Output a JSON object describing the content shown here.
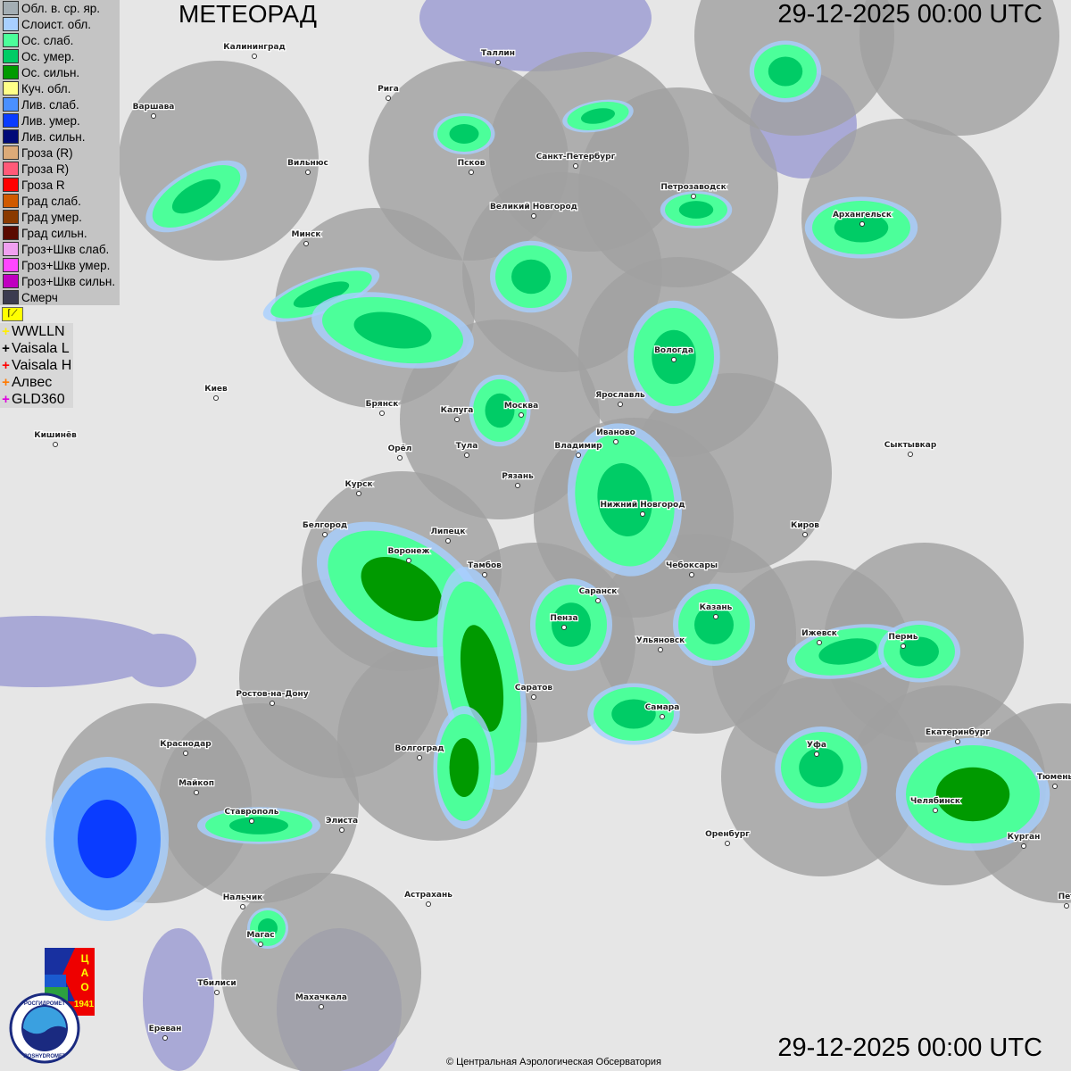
{
  "header": {
    "title": "МЕТЕОРАД",
    "timestamp_top": "29-12-2025  00:00 UTC",
    "timestamp_bottom": "29-12-2025  00:00 UTC"
  },
  "legend": [
    {
      "label": "Обл. в. ср. яр.",
      "color": "#a4aeb4"
    },
    {
      "label": "Слоист. обл.",
      "color": "#a8cfff"
    },
    {
      "label": "Ос. слаб.",
      "color": "#4cff9a"
    },
    {
      "label": "Ос. умер.",
      "color": "#00cc66"
    },
    {
      "label": "Ос. сильн.",
      "color": "#009a00"
    },
    {
      "label": "Куч. обл.",
      "color": "#ffff88"
    },
    {
      "label": "Лив. слаб.",
      "color": "#4a90ff"
    },
    {
      "label": "Лив. умер.",
      "color": "#0a3cff"
    },
    {
      "label": "Лив. сильн.",
      "color": "#000a78"
    },
    {
      "label": "Гроза (R)",
      "color": "#dcaa78"
    },
    {
      "label": "Гроза R)",
      "color": "#ff5a78"
    },
    {
      "label": "Гроза R",
      "color": "#ff0000"
    },
    {
      "label": "Град слаб.",
      "color": "#d05a00"
    },
    {
      "label": "Град умер.",
      "color": "#8a3a00"
    },
    {
      "label": "Град сильн.",
      "color": "#5a0a00"
    },
    {
      "label": "Гроз+Шкв слаб.",
      "color": "#f0a0f0"
    },
    {
      "label": "Гроз+Шкв умер.",
      "color": "#ff46ff"
    },
    {
      "label": "Гроз+Шкв сильн.",
      "color": "#c000c0"
    },
    {
      "label": "Смерч",
      "color": "#3c3c50"
    }
  ],
  "lightning_networks": [
    {
      "label": "WWLLN",
      "color": "#ffee00"
    },
    {
      "label": "Vaisala L",
      "color": "#000000"
    },
    {
      "label": "Vaisala H",
      "color": "#ff0000"
    },
    {
      "label": "Алвес",
      "color": "#ff7a00"
    },
    {
      "label": "GLD360",
      "color": "#dd00dd"
    }
  ],
  "flag_icon": "flag-icon",
  "cities": [
    "Калининград",
    "Таллин",
    "Рига",
    "Варшава",
    "Вильнюс",
    "Псков",
    "Санкт-Петербург",
    "Петрозаводск",
    "Великий Новгород",
    "Архангельск",
    "Минск",
    "Вологда",
    "Киев",
    "Брянск",
    "Калуга",
    "Москва",
    "Ярославль",
    "Иваново",
    "Кишинёв",
    "Тула",
    "Владимир",
    "Орёл",
    "Сыктывкар",
    "Рязань",
    "Курск",
    "Нижний Новгород",
    "Киров",
    "Белгород",
    "Липецк",
    "Воронеж",
    "Тамбов",
    "Чебоксары",
    "Саранск",
    "Казань",
    "Пенза",
    "Ижевск",
    "Пермь",
    "Ульяновск",
    "Саратов",
    "Ростов-на-Дону",
    "Самара",
    "Екатеринбург",
    "Краснодар",
    "Уфа",
    "Волгоград",
    "Майкоп",
    "Тюмень",
    "Челябинск",
    "Ставрополь",
    "Элиста",
    "Оренбург",
    "Курган",
    "Астрахань",
    "Нальчик",
    "Магас",
    "Тбилиси",
    "Махачкала",
    "Ереван",
    "Пет"
  ],
  "logos": {
    "cao": "ЦАО 1941",
    "roshydromet": "РОСГИДРОМЕТ ROSHYDROMET"
  },
  "colors": {
    "radar_coverage": "#a0a0a0",
    "map_background": "#e6e6e6",
    "water": "#a9a9d6"
  },
  "copyright": "© Центральная Аэрологическая Обсерватория"
}
